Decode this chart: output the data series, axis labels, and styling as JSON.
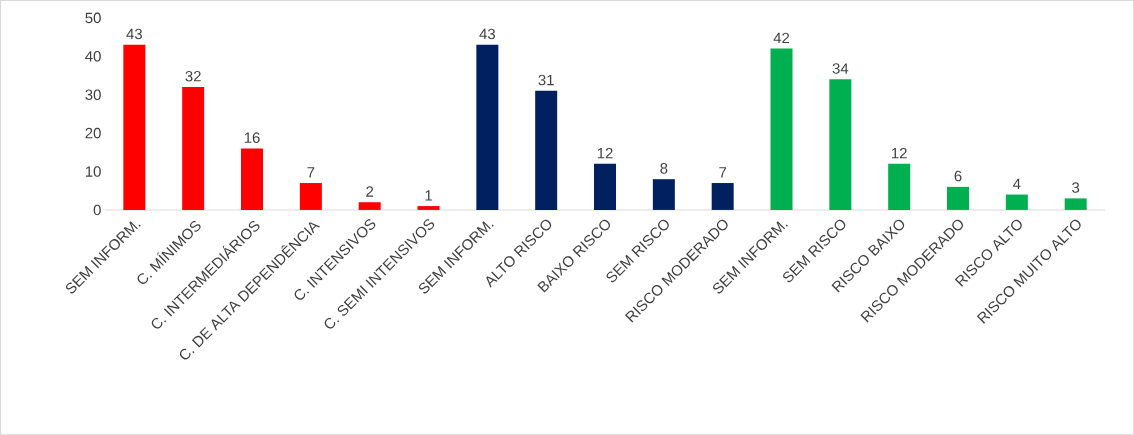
{
  "chart_data": {
    "type": "bar",
    "categories": [
      "SEM INFORM.",
      "C. MÍNIMOS",
      "C. INTERMEDIÁRIOS",
      "C. DE ALTA DEPENDÊNCIA",
      "C. INTENSIVOS",
      "C. SEMI INTENSIVOS",
      "SEM INFORM.",
      "ALTO RISCO",
      "BAIXO RISCO",
      "SEM RISCO",
      "RISCO MODERADO",
      "SEM INFORM.",
      "SEM RISCO",
      "RISCO BAIXO",
      "RISCO MODERADO",
      "RISCO ALTO",
      "RISCO MUITO ALTO"
    ],
    "values": [
      43,
      32,
      16,
      7,
      2,
      1,
      43,
      31,
      12,
      8,
      7,
      42,
      34,
      12,
      6,
      4,
      3
    ],
    "colors": [
      "#ff0000",
      "#ff0000",
      "#ff0000",
      "#ff0000",
      "#ff0000",
      "#ff0000",
      "#002060",
      "#002060",
      "#002060",
      "#002060",
      "#002060",
      "#00b050",
      "#00b050",
      "#00b050",
      "#00b050",
      "#00b050",
      "#00b050"
    ],
    "ylim": [
      0,
      50
    ],
    "yticks": [
      0,
      10,
      20,
      30,
      40,
      50
    ],
    "data_labels": true
  }
}
